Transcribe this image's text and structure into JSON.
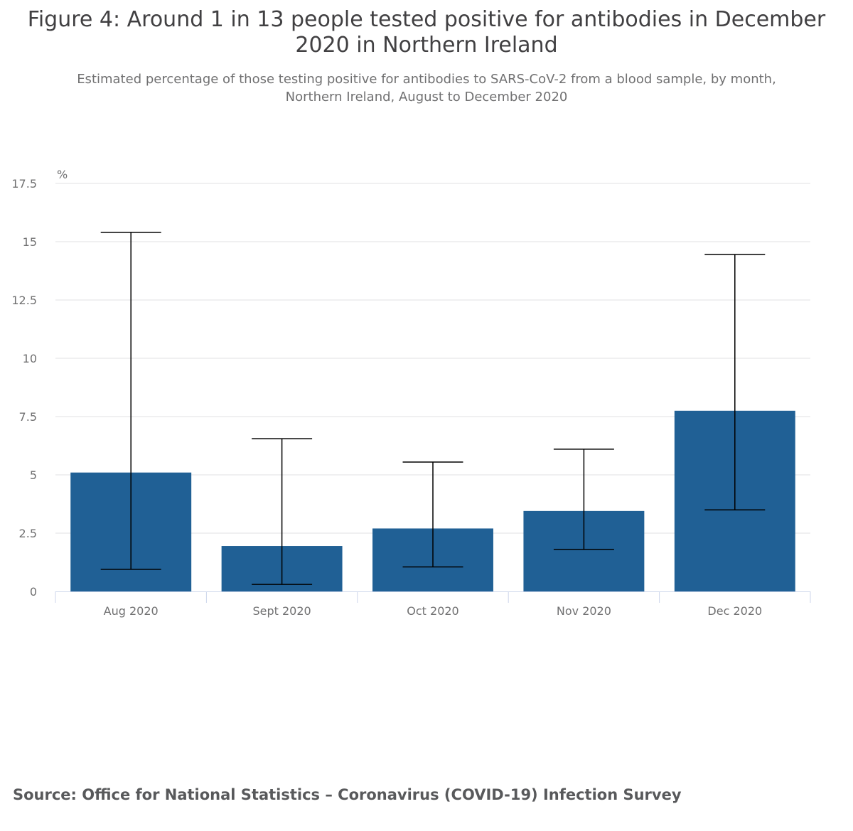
{
  "header": {
    "title_lines": [
      "Figure 4: Around 1 in 13 people tested positive for antibodies in December",
      "2020 in Northern Ireland"
    ],
    "subtitle_lines": [
      "Estimated percentage of those testing positive for antibodies to SARS-CoV-2 from a blood sample, by month,",
      "Northern Ireland, August to December 2020"
    ]
  },
  "footer": {
    "source": "Source: Office for National Statistics – Coronavirus (COVID-19) Infection Survey"
  },
  "colors": {
    "bar": "#206095",
    "grid": "#e2e2e3",
    "axis": "#ccd6eb",
    "error_bar": "#000000"
  },
  "chart_data": {
    "type": "bar",
    "title": "Figure 4: Around 1 in 13 people tested positive for antibodies in December 2020 in Northern Ireland",
    "subtitle": "Estimated percentage of those testing positive for antibodies to SARS-CoV-2 from a blood sample, by month, Northern Ireland, August to December 2020",
    "ylabel": "%",
    "xlabel": "",
    "categories": [
      "Aug 2020",
      "Sept 2020",
      "Oct 2020",
      "Nov 2020",
      "Dec 2020"
    ],
    "values": [
      5.1,
      1.95,
      2.7,
      3.45,
      7.75
    ],
    "lower": [
      0.95,
      0.3,
      1.05,
      1.8,
      3.5
    ],
    "upper": [
      15.4,
      6.55,
      5.55,
      6.1,
      14.45
    ],
    "ylim": [
      0,
      17.5
    ],
    "yticks": [
      "0",
      "2.5",
      "5",
      "7.5",
      "10",
      "12.5",
      "15",
      "17.5"
    ],
    "grid": true,
    "legend": "none"
  }
}
